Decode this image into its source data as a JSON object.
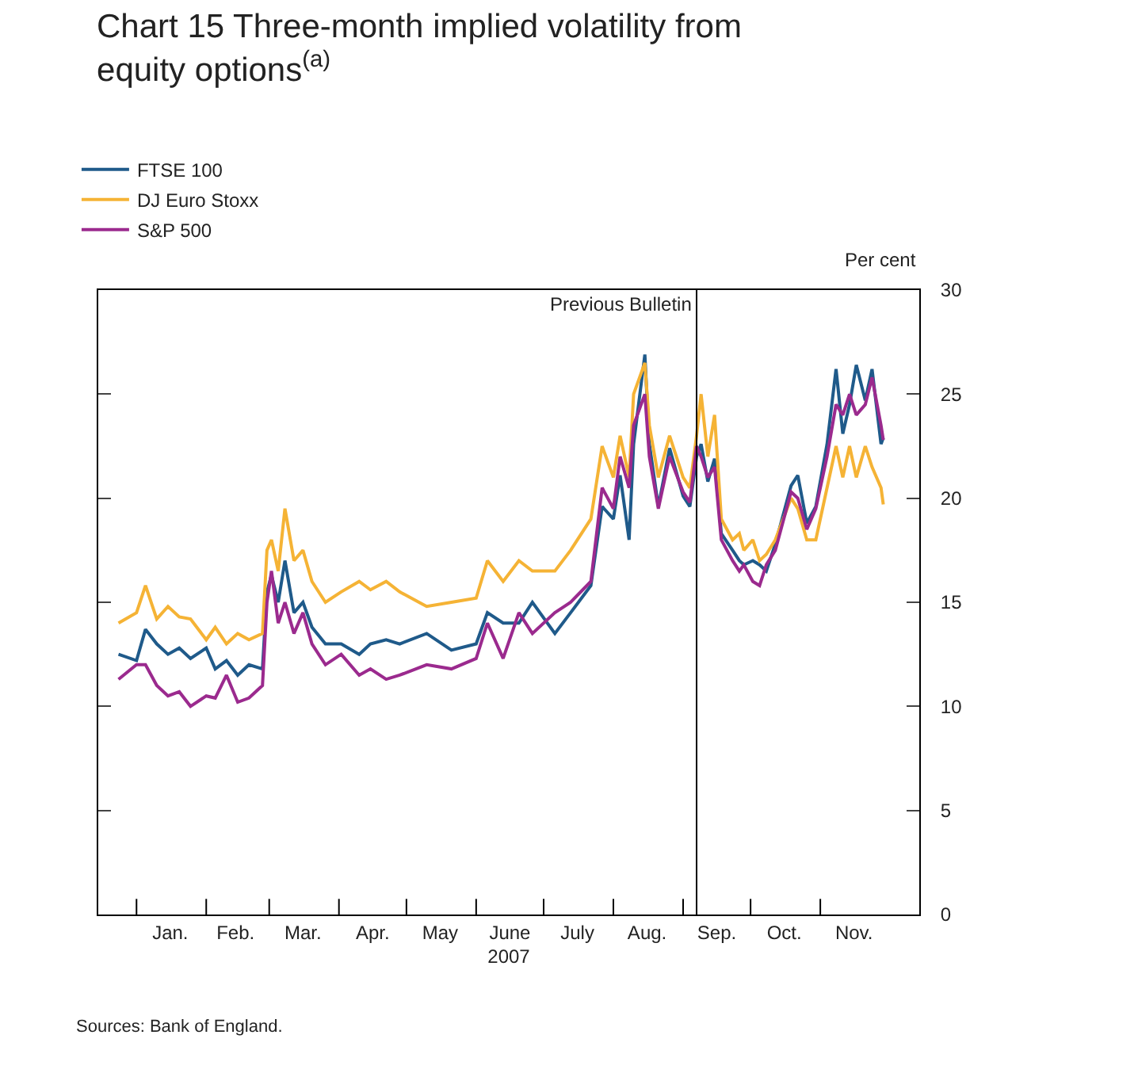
{
  "chart_data": {
    "type": "line",
    "title": "Chart 15 Three-month implied volatility from equity options$^{(a)}$",
    "xlabel": "2007",
    "ylabel": "Per cent",
    "annotations": [
      "Sources: Bank of England."
    ],
    "x": [
      "2006-12-24",
      "2007-01-01",
      "2007-01-05",
      "2007-01-10",
      "2007-01-15",
      "2007-01-20",
      "2007-01-25",
      "2007-02-01",
      "2007-02-05",
      "2007-02-10",
      "2007-02-15",
      "2007-02-20",
      "2007-02-26",
      "2007-02-28",
      "2007-03-02",
      "2007-03-05",
      "2007-03-08",
      "2007-03-12",
      "2007-03-16",
      "2007-03-20",
      "2007-03-26",
      "2007-04-02",
      "2007-04-10",
      "2007-04-15",
      "2007-04-22",
      "2007-04-28",
      "2007-05-10",
      "2007-05-21",
      "2007-06-01",
      "2007-06-06",
      "2007-06-13",
      "2007-06-20",
      "2007-06-26",
      "2007-07-06",
      "2007-07-13",
      "2007-07-22",
      "2007-07-27",
      "2007-08-01",
      "2007-08-04",
      "2007-08-08",
      "2007-08-10",
      "2007-08-15",
      "2007-08-17",
      "2007-08-21",
      "2007-08-26",
      "2007-09-01",
      "2007-09-04",
      "2007-09-07",
      "2007-09-09",
      "2007-09-12",
      "2007-09-15",
      "2007-09-18",
      "2007-09-23",
      "2007-09-26",
      "2007-09-28",
      "2007-10-02",
      "2007-10-05",
      "2007-10-08",
      "2007-10-12",
      "2007-10-19",
      "2007-10-22",
      "2007-10-26",
      "2007-10-30",
      "2007-11-04",
      "2007-11-08",
      "2007-11-11",
      "2007-11-14",
      "2007-11-17",
      "2007-11-21",
      "2007-11-24",
      "2007-11-28",
      "2007-11-29"
    ],
    "series": [
      {
        "name": "FTSE 100",
        "color": "#1f5a8a",
        "values": [
          12.5,
          12.2,
          13.7,
          13.0,
          12.5,
          12.8,
          12.3,
          12.8,
          11.8,
          12.2,
          11.5,
          12.0,
          11.8,
          15.5,
          16.3,
          15.0,
          17.0,
          14.5,
          15.0,
          13.8,
          13.0,
          13.0,
          12.5,
          13.0,
          13.2,
          13.0,
          13.5,
          12.7,
          13.0,
          14.5,
          14.0,
          14.0,
          15.0,
          13.5,
          14.5,
          15.8,
          19.6,
          19.0,
          21.1,
          18.0,
          22.6,
          26.9,
          22.6,
          19.6,
          22.4,
          20.1,
          19.6,
          22.0,
          22.6,
          20.8,
          21.9,
          18.3,
          17.5,
          17.0,
          16.8,
          17.0,
          16.8,
          16.5,
          17.8,
          20.6,
          21.1,
          18.8,
          19.6,
          22.6,
          26.2,
          23.1,
          24.5,
          26.4,
          24.7,
          26.2,
          22.6,
          22.9
        ]
      },
      {
        "name": "DJ Euro Stoxx",
        "color": "#f5b335",
        "values": [
          14.0,
          14.5,
          15.8,
          14.2,
          14.8,
          14.3,
          14.2,
          13.2,
          13.8,
          13.0,
          13.5,
          13.2,
          13.5,
          17.5,
          18.0,
          16.5,
          19.5,
          17.0,
          17.5,
          16.0,
          15.0,
          15.5,
          16.0,
          15.6,
          16.0,
          15.5,
          14.8,
          15.0,
          15.2,
          17.0,
          16.0,
          17.0,
          16.5,
          16.5,
          17.5,
          19.0,
          22.5,
          21.0,
          23.0,
          21.0,
          25.0,
          26.5,
          23.5,
          21.0,
          23.0,
          21.0,
          20.5,
          23.0,
          25.0,
          22.0,
          24.0,
          19.0,
          18.0,
          18.3,
          17.5,
          18.0,
          17.0,
          17.3,
          18.0,
          20.0,
          19.5,
          18.0,
          18.0,
          20.5,
          22.5,
          21.0,
          22.5,
          21.0,
          22.5,
          21.5,
          20.5,
          19.7
        ]
      },
      {
        "name": "S&P 500",
        "color": "#9b2a8e",
        "values": [
          11.3,
          12.0,
          12.0,
          11.0,
          10.5,
          10.7,
          10.0,
          10.5,
          10.4,
          11.5,
          10.2,
          10.4,
          11.0,
          15.0,
          16.5,
          14.0,
          15.0,
          13.5,
          14.5,
          13.0,
          12.0,
          12.5,
          11.5,
          11.8,
          11.3,
          11.5,
          12.0,
          11.8,
          12.3,
          14.0,
          12.3,
          14.5,
          13.5,
          14.5,
          15.0,
          16.0,
          20.5,
          19.5,
          22.0,
          20.5,
          23.5,
          25.0,
          22.0,
          19.5,
          22.0,
          20.3,
          19.8,
          22.5,
          22.0,
          21.0,
          21.5,
          18.0,
          17.0,
          16.5,
          16.8,
          16.0,
          15.8,
          16.8,
          17.5,
          20.3,
          20.0,
          18.5,
          19.5,
          22.0,
          24.5,
          24.0,
          25.0,
          24.0,
          24.5,
          25.8,
          23.5,
          22.8
        ]
      }
    ],
    "xlim": [
      "2006-12-15",
      "2007-12-15"
    ],
    "xticks": [
      {
        "value": "2007-01-01",
        "label": null
      },
      {
        "value": "2007-01-16",
        "label": "Jan."
      },
      {
        "value": "2007-02-01",
        "label": null
      },
      {
        "value": "2007-02-14",
        "label": "Feb."
      },
      {
        "value": "2007-03-01",
        "label": null
      },
      {
        "value": "2007-03-16",
        "label": "Mar."
      },
      {
        "value": "2007-04-01",
        "label": null
      },
      {
        "value": "2007-04-16",
        "label": "Apr."
      },
      {
        "value": "2007-05-01",
        "label": null
      },
      {
        "value": "2007-05-16",
        "label": "May"
      },
      {
        "value": "2007-06-01",
        "label": null
      },
      {
        "value": "2007-06-16",
        "label": "June"
      },
      {
        "value": "2007-07-01",
        "label": null
      },
      {
        "value": "2007-07-16",
        "label": "July"
      },
      {
        "value": "2007-08-01",
        "label": null
      },
      {
        "value": "2007-08-16",
        "label": "Aug."
      },
      {
        "value": "2007-09-01",
        "label": null
      },
      {
        "value": "2007-09-16",
        "label": "Sep."
      },
      {
        "value": "2007-10-01",
        "label": null
      },
      {
        "value": "2007-10-16",
        "label": "Oct."
      },
      {
        "value": "2007-11-01",
        "label": null
      },
      {
        "value": "2007-11-16",
        "label": "Nov."
      }
    ],
    "ylim": [
      0,
      30
    ],
    "yticks": [
      0,
      5,
      10,
      15,
      20,
      25,
      30
    ],
    "ref_lines": [
      {
        "axis": "x",
        "value": "2007-09-07",
        "label": "Previous Bulletin",
        "color": "#000000"
      }
    ],
    "grid": false,
    "legend": "top left",
    "marker": "none",
    "line_style": "solid"
  }
}
